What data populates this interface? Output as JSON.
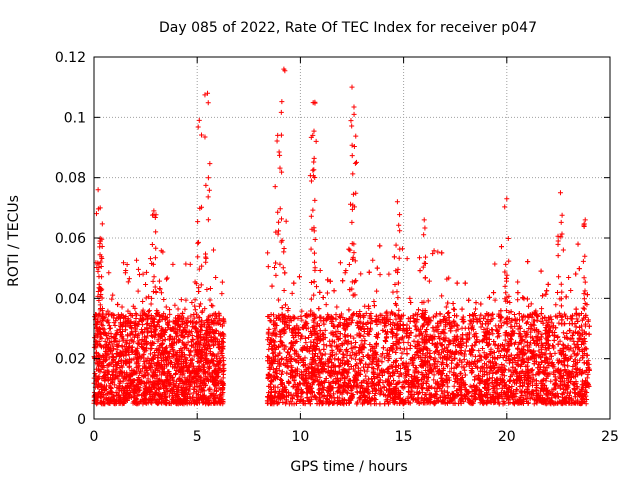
{
  "chart_data": {
    "type": "scatter",
    "title": "Day 085 of 2022, Rate Of TEC Index for receiver p047",
    "xlabel": "GPS time / hours",
    "ylabel": "ROTI / TECUs",
    "xlim": [
      0,
      25
    ],
    "ylim": [
      0,
      0.12
    ],
    "x_ticks": [
      0,
      5,
      10,
      15,
      20,
      25
    ],
    "x_tick_labels": [
      "0",
      "5",
      "10",
      "15",
      "20",
      "25"
    ],
    "y_ticks": [
      0,
      0.02,
      0.04,
      0.06,
      0.08,
      0.1,
      0.12
    ],
    "y_tick_labels": [
      "0",
      "0.02",
      "0.04",
      "0.06",
      "0.08",
      "0.1",
      "0.12"
    ],
    "grid": true,
    "marker": "+",
    "marker_color": "#ff0000",
    "series": [
      {
        "name": "ROTI",
        "description_segments": [
          {
            "x_start": 0.0,
            "x_end": 6.3,
            "typical_range": [
              0.005,
              0.035
            ]
          },
          {
            "x_start": 8.4,
            "x_end": 24.0,
            "typical_range": [
              0.005,
              0.035
            ]
          }
        ],
        "peaks": [
          {
            "x": 0.2,
            "y": 0.076
          },
          {
            "x": 0.3,
            "y": 0.07
          },
          {
            "x": 0.3,
            "y": 0.059
          },
          {
            "x": 2.9,
            "y": 0.069
          },
          {
            "x": 5.1,
            "y": 0.099
          },
          {
            "x": 5.5,
            "y": 0.108
          },
          {
            "x": 8.9,
            "y": 0.094
          },
          {
            "x": 9.2,
            "y": 0.116
          },
          {
            "x": 10.7,
            "y": 0.105
          },
          {
            "x": 10.6,
            "y": 0.094
          },
          {
            "x": 12.5,
            "y": 0.11
          },
          {
            "x": 12.6,
            "y": 0.101
          },
          {
            "x": 14.7,
            "y": 0.072
          },
          {
            "x": 16.0,
            "y": 0.066
          },
          {
            "x": 20.0,
            "y": 0.073
          },
          {
            "x": 22.6,
            "y": 0.075
          },
          {
            "x": 23.8,
            "y": 0.066
          }
        ],
        "data_gap": [
          6.3,
          8.4
        ]
      }
    ]
  }
}
